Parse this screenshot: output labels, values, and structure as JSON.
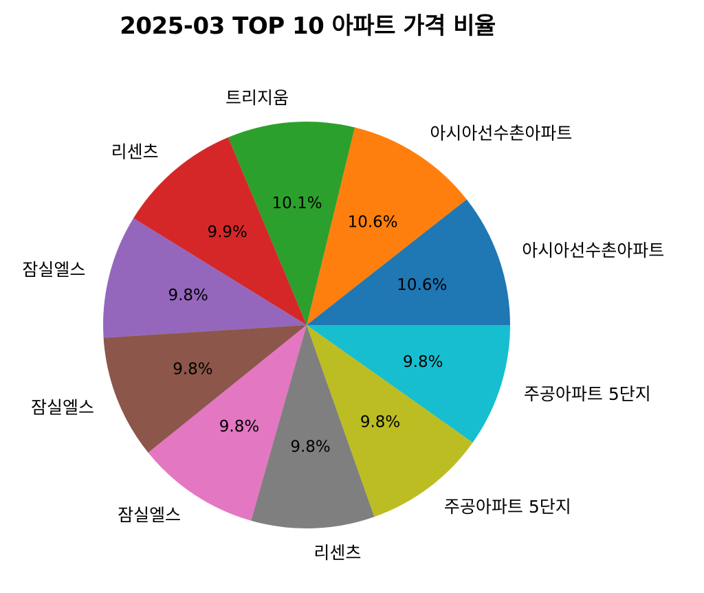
{
  "chart_data": {
    "type": "pie",
    "title": "2025-03 TOP 10 아파트 가격 비율",
    "categories": [
      "아시아선수촌아파트",
      "아시아선수촌아파트",
      "트리지움",
      "리센츠",
      "잠실엘스",
      "잠실엘스",
      "잠실엘스",
      "리센츠",
      "주공아파트 5단지",
      "주공아파트 5단지"
    ],
    "values": [
      10.6,
      10.6,
      10.1,
      9.9,
      9.8,
      9.8,
      9.8,
      9.8,
      9.8,
      9.8
    ],
    "value_labels": [
      "10.6%",
      "10.6%",
      "10.1%",
      "9.9%",
      "9.8%",
      "9.8%",
      "9.8%",
      "9.8%",
      "9.8%",
      "9.8%"
    ],
    "colors": [
      "#1f77b4",
      "#ff7f0e",
      "#2ca02c",
      "#d62728",
      "#9467bd",
      "#8c564b",
      "#e377c2",
      "#7f7f7f",
      "#bcbd22",
      "#17becf"
    ],
    "start_angle_deg": 0,
    "direction": "counterclockwise",
    "legend": "none"
  }
}
